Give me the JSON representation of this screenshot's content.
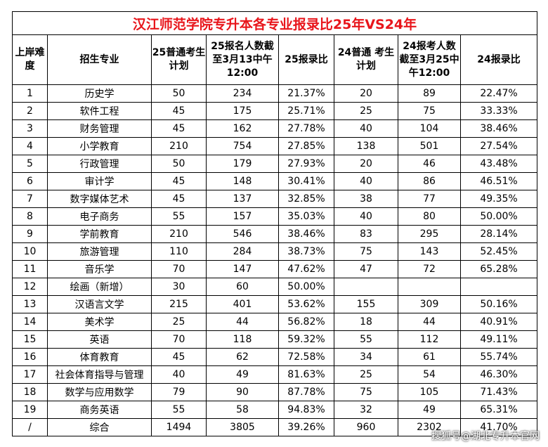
{
  "title": "汉江师范学院专升本各专业报录比25年VS24年",
  "headers": [
    "上岸难度",
    "招生专业",
    "25普通考生计划",
    "25报名人数截至3月13中午12:00",
    "25报录比",
    "24普通 考生计划",
    "24报考人数截至3月25中午12:00",
    "24报录比"
  ],
  "rows": [
    [
      "1",
      "历史学",
      "50",
      "234",
      "21.37%",
      "20",
      "89",
      "22.47%"
    ],
    [
      "2",
      "软件工程",
      "45",
      "175",
      "25.71%",
      "25",
      "75",
      "33.33%"
    ],
    [
      "3",
      "财务管理",
      "45",
      "162",
      "27.78%",
      "40",
      "104",
      "38.46%"
    ],
    [
      "4",
      "小学教育",
      "210",
      "754",
      "27.85%",
      "138",
      "501",
      "27.54%"
    ],
    [
      "5",
      "行政管理",
      "50",
      "179",
      "27.93%",
      "20",
      "46",
      "43.48%"
    ],
    [
      "6",
      "审计学",
      "45",
      "148",
      "30.41%",
      "40",
      "86",
      "46.51%"
    ],
    [
      "7",
      "数字媒体艺术",
      "45",
      "137",
      "32.85%",
      "38",
      "77",
      "49.35%"
    ],
    [
      "8",
      "电子商务",
      "55",
      "157",
      "35.03%",
      "40",
      "80",
      "50.00%"
    ],
    [
      "9",
      "学前教育",
      "210",
      "546",
      "38.46%",
      "83",
      "295",
      "28.14%"
    ],
    [
      "10",
      "旅游管理",
      "110",
      "284",
      "38.73%",
      "75",
      "143",
      "52.45%"
    ],
    [
      "11",
      "音乐学",
      "70",
      "147",
      "47.62%",
      "47",
      "72",
      "65.28%"
    ],
    [
      "12",
      "绘画（新增）",
      "30",
      "60",
      "50.00%",
      "",
      "",
      ""
    ],
    [
      "13",
      "汉语言文学",
      "215",
      "401",
      "53.62%",
      "155",
      "309",
      "50.16%"
    ],
    [
      "14",
      "美术学",
      "25",
      "44",
      "56.82%",
      "18",
      "44",
      "40.91%"
    ],
    [
      "15",
      "英语",
      "70",
      "118",
      "59.32%",
      "55",
      "112",
      "49.11%"
    ],
    [
      "16",
      "体育教育",
      "45",
      "62",
      "72.58%",
      "34",
      "61",
      "55.74%"
    ],
    [
      "17",
      "社会体育指导与管理",
      "40",
      "49",
      "81.63%",
      "25",
      "54",
      "46.30%"
    ],
    [
      "18",
      "数学与应用数学",
      "79",
      "90",
      "87.78%",
      "75",
      "105",
      "71.43%"
    ],
    [
      "19",
      "商务英语",
      "55",
      "58",
      "94.83%",
      "32",
      "49",
      "65.31%"
    ],
    [
      "/",
      "综合",
      "1494",
      "3805",
      "39.26%",
      "960",
      "2302",
      "41.70%"
    ]
  ],
  "watermark": "搜狐号@湖北专升本官网"
}
